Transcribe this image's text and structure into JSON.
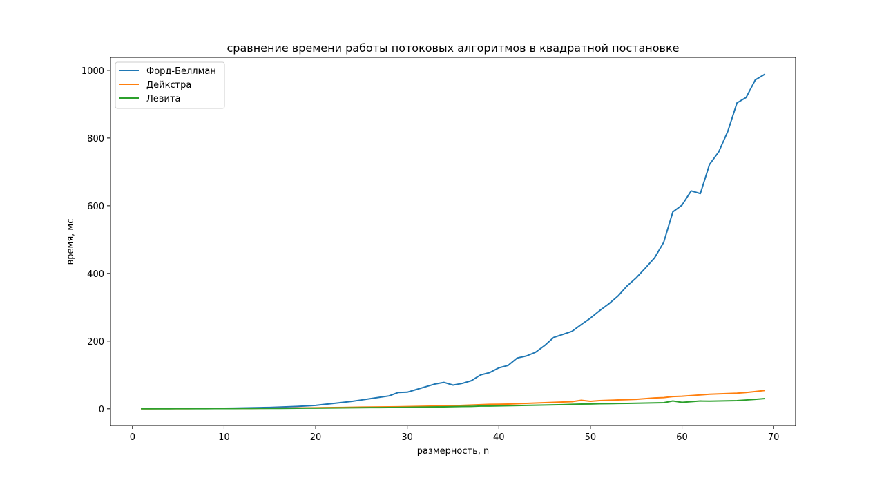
{
  "chart_data": {
    "type": "line",
    "title": "сравнение времени работы потоковых алгоритмов в квадратной постановке",
    "xlabel": "размерность, n",
    "ylabel": "время, мс",
    "xlim": [
      -2.4,
      72.4
    ],
    "ylim": [
      -49.4,
      1038.6
    ],
    "xticks": [
      0,
      10,
      20,
      30,
      40,
      50,
      60,
      70
    ],
    "yticks": [
      0,
      200,
      400,
      600,
      800,
      1000
    ],
    "grid": false,
    "legend_position": "top-left",
    "x": [
      1,
      2,
      3,
      4,
      5,
      6,
      7,
      8,
      9,
      10,
      11,
      12,
      13,
      14,
      15,
      16,
      17,
      18,
      19,
      20,
      21,
      22,
      23,
      24,
      25,
      26,
      27,
      28,
      29,
      30,
      31,
      32,
      33,
      34,
      35,
      36,
      37,
      38,
      39,
      40,
      41,
      42,
      43,
      44,
      45,
      46,
      47,
      48,
      49,
      50,
      51,
      52,
      53,
      54,
      55,
      56,
      57,
      58,
      59,
      60,
      61,
      62,
      63,
      64,
      65,
      66,
      67,
      68,
      69
    ],
    "series": [
      {
        "name": "Форд-Беллман",
        "color": "#1f77b4",
        "values": [
          0.5,
          0.5,
          0.6,
          0.7,
          0.8,
          0.9,
          1,
          1.2,
          1.4,
          1.6,
          1.9,
          2.3,
          2.8,
          3.4,
          4,
          5,
          6,
          7,
          8.5,
          10,
          13,
          16,
          19,
          22,
          26,
          30,
          34,
          38,
          48,
          49,
          57,
          65,
          73,
          78,
          70,
          75,
          83,
          100,
          107,
          121,
          128,
          150,
          156,
          167,
          187,
          211,
          220,
          229,
          249,
          268,
          290,
          310,
          333,
          363,
          387,
          416,
          446,
          492,
          582,
          602,
          644,
          636,
          722,
          759,
          820,
          904,
          920,
          972,
          988
        ]
      },
      {
        "name": "Дейкстра",
        "color": "#ff7f0e",
        "values": [
          0.2,
          0.2,
          0.3,
          0.3,
          0.4,
          0.4,
          0.5,
          0.6,
          0.7,
          0.8,
          0.9,
          1,
          1.2,
          1.4,
          1.6,
          1.8,
          2,
          2.3,
          2.6,
          3,
          3.3,
          3.6,
          4,
          4.5,
          5,
          5.3,
          5.5,
          5.8,
          6,
          6.5,
          7,
          7.5,
          8,
          8.5,
          9,
          10,
          11,
          12,
          13,
          13.5,
          14,
          15,
          16,
          17,
          18,
          19,
          20,
          21,
          25,
          22,
          24,
          25,
          26,
          27,
          28,
          30,
          32,
          33,
          36,
          37,
          39,
          41,
          43,
          44,
          45,
          46,
          48,
          51,
          54
        ]
      },
      {
        "name": "Левита",
        "color": "#2ca02c",
        "values": [
          0.1,
          0.1,
          0.2,
          0.2,
          0.3,
          0.3,
          0.4,
          0.4,
          0.5,
          0.6,
          0.7,
          0.8,
          0.9,
          1,
          1.1,
          1.2,
          1.4,
          1.6,
          1.8,
          2,
          2.2,
          2.4,
          2.6,
          2.9,
          3.1,
          3.3,
          3.5,
          3.8,
          4,
          4.3,
          4.6,
          5,
          5.4,
          5.8,
          6.3,
          6.7,
          7.1,
          8,
          8,
          8.5,
          9,
          9.5,
          10,
          10.5,
          11,
          11.5,
          12,
          13,
          14,
          14.2,
          15,
          15.2,
          15.6,
          16,
          16.5,
          17,
          17.5,
          18,
          23,
          19,
          21,
          23,
          22.5,
          23,
          23.5,
          24,
          26,
          28,
          30
        ]
      }
    ]
  }
}
